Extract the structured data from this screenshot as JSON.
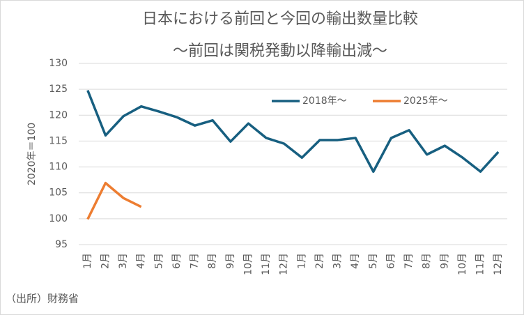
{
  "chart_data": {
    "type": "line",
    "title": "日本における前回と今回の輸出数量比較",
    "subtitle": "～前回は関税発動以降輸出減～",
    "y_label": "2020年＝100",
    "source": "（出所）財務省",
    "categories": [
      "1月",
      "2月",
      "3月",
      "4月",
      "5月",
      "6月",
      "7月",
      "8月",
      "9月",
      "10月",
      "11月",
      "12月",
      "1月",
      "2月",
      "3月",
      "4月",
      "5月",
      "6月",
      "7月",
      "8月",
      "9月",
      "10月",
      "11月",
      "12月"
    ],
    "series": [
      {
        "name": "2018年～",
        "color": "#175f80",
        "values": [
          124.8,
          116.1,
          119.8,
          121.7,
          120.7,
          119.6,
          118.0,
          119.0,
          114.9,
          118.4,
          115.6,
          114.5,
          111.8,
          115.2,
          115.2,
          115.6,
          109.1,
          115.6,
          117.1,
          112.4,
          114.1,
          111.8,
          109.1,
          112.9
        ]
      },
      {
        "name": "2025年～",
        "color": "#ed7d31",
        "values": [
          99.9,
          106.9,
          104.0,
          102.3,
          null,
          null,
          null,
          null,
          null,
          null,
          null,
          null,
          null,
          null,
          null,
          null,
          null,
          null,
          null,
          null,
          null,
          null,
          null,
          null
        ]
      }
    ],
    "ylim": [
      95,
      130
    ],
    "yticks": [
      95,
      100,
      105,
      110,
      115,
      120,
      125,
      130
    ],
    "grid": true,
    "legend": "top"
  }
}
